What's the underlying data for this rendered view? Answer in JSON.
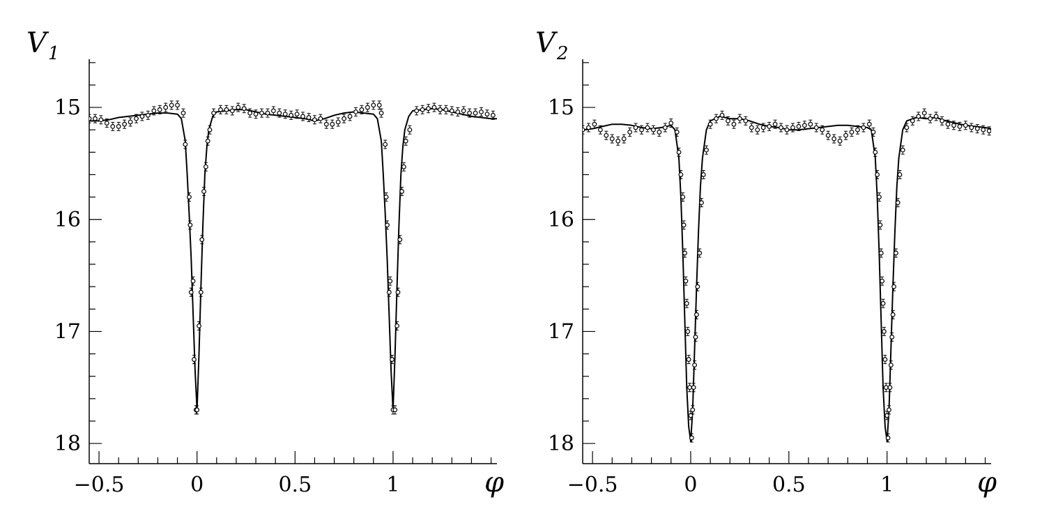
{
  "chart_data": [
    {
      "type": "line",
      "ylabel_symbol": "V",
      "ylabel_subscript": "1",
      "xlabel": "φ",
      "xlim": [
        -0.55,
        1.53
      ],
      "ylim": [
        18.18,
        14.57
      ],
      "y_inverted": true,
      "grid": false,
      "x_ticks": [
        -0.5,
        0,
        0.5,
        1
      ],
      "x_tick_labels": [
        "−0.5",
        "0",
        "0.5",
        "1"
      ],
      "y_ticks": [
        15,
        16,
        17,
        18
      ],
      "y_tick_labels": [
        "15",
        "16",
        "17",
        "18"
      ],
      "x_minor_step": 0.1,
      "y_minor_step": 0.2,
      "series": [
        {
          "kind": "model-curve",
          "x": [
            -0.55,
            -0.5,
            -0.45,
            -0.4,
            -0.35,
            -0.3,
            -0.25,
            -0.2,
            -0.15,
            -0.1,
            -0.08,
            -0.06,
            -0.05,
            -0.04,
            -0.03,
            -0.02,
            -0.01,
            0,
            0.01,
            0.02,
            0.03,
            0.04,
            0.05,
            0.06,
            0.08,
            0.1,
            0.15,
            0.2,
            0.25,
            0.3,
            0.35,
            0.4,
            0.45,
            0.5,
            0.55,
            0.6,
            0.65,
            0.7,
            0.75,
            0.8,
            0.85,
            0.9,
            0.92,
            0.94,
            0.95,
            0.96,
            0.97,
            0.98,
            0.99,
            1,
            1.01,
            1.02,
            1.03,
            1.04,
            1.05,
            1.06,
            1.08,
            1.1,
            1.15,
            1.2,
            1.25,
            1.3,
            1.35,
            1.4,
            1.45,
            1.5,
            1.53
          ],
          "y": [
            15.12,
            15.12,
            15.11,
            15.09,
            15.08,
            15.07,
            15.06,
            15.05,
            15.05,
            15.06,
            15.1,
            15.3,
            15.6,
            15.95,
            16.35,
            16.85,
            17.35,
            17.7,
            17.2,
            16.6,
            16.05,
            15.6,
            15.35,
            15.2,
            15.08,
            15.04,
            15.03,
            15.02,
            15.02,
            15.04,
            15.06,
            15.07,
            15.08,
            15.09,
            15.1,
            15.12,
            15.1,
            15.07,
            15.05,
            15.04,
            15.05,
            15.06,
            15.1,
            15.3,
            15.6,
            15.95,
            16.35,
            16.85,
            17.35,
            17.7,
            17.2,
            16.6,
            16.05,
            15.6,
            15.35,
            15.2,
            15.08,
            15.03,
            15.02,
            15.01,
            15.02,
            15.04,
            15.06,
            15.08,
            15.09,
            15.1,
            15.1
          ]
        },
        {
          "kind": "observations",
          "x": [
            -0.55,
            -0.52,
            -0.49,
            -0.46,
            -0.43,
            -0.4,
            -0.37,
            -0.34,
            -0.31,
            -0.28,
            -0.25,
            -0.22,
            -0.19,
            -0.16,
            -0.13,
            -0.1,
            -0.07,
            -0.06,
            -0.04,
            -0.035,
            -0.03,
            -0.02,
            -0.015,
            -0.005,
            0,
            0.01,
            0.02,
            0.025,
            0.035,
            0.045,
            0.055,
            0.065,
            0.085,
            0.12,
            0.15,
            0.18,
            0.21,
            0.24,
            0.27,
            0.3,
            0.33,
            0.36,
            0.39,
            0.42,
            0.45,
            0.48,
            0.51,
            0.54,
            0.57,
            0.6,
            0.63,
            0.66,
            0.69,
            0.72,
            0.75,
            0.78,
            0.81,
            0.84,
            0.87,
            0.9,
            0.93,
            0.94,
            0.96,
            0.965,
            0.97,
            0.98,
            0.985,
            0.995,
            1,
            1.01,
            1.02,
            1.025,
            1.035,
            1.045,
            1.055,
            1.065,
            1.085,
            1.12,
            1.15,
            1.18,
            1.21,
            1.24,
            1.27,
            1.3,
            1.33,
            1.36,
            1.39,
            1.42,
            1.45,
            1.48,
            1.51
          ],
          "y": [
            15.1,
            15.1,
            15.11,
            15.14,
            15.17,
            15.17,
            15.15,
            15.13,
            15.1,
            15.08,
            15.07,
            15.03,
            15.02,
            15.0,
            14.98,
            14.98,
            15.05,
            15.33,
            15.8,
            16.05,
            16.65,
            16.55,
            17.25,
            17.7,
            17.7,
            16.95,
            16.65,
            16.18,
            15.75,
            15.53,
            15.3,
            15.2,
            15.05,
            15.02,
            15.02,
            15.03,
            15.0,
            15.01,
            15.05,
            15.06,
            15.05,
            15.05,
            15.03,
            15.05,
            15.06,
            15.07,
            15.06,
            15.08,
            15.09,
            15.11,
            15.1,
            15.15,
            15.15,
            15.13,
            15.1,
            15.08,
            15.04,
            15.02,
            15.0,
            14.98,
            14.98,
            15.05,
            15.33,
            15.8,
            16.05,
            16.65,
            16.55,
            17.25,
            17.7,
            17.7,
            16.95,
            16.65,
            16.18,
            15.75,
            15.53,
            15.3,
            15.2,
            15.03,
            15.02,
            15.01,
            15.0,
            15.02,
            15.02,
            15.03,
            15.04,
            15.03,
            15.05,
            15.05,
            15.04,
            15.06,
            15.07
          ]
        }
      ]
    },
    {
      "type": "line",
      "ylabel_symbol": "V",
      "ylabel_subscript": "2",
      "xlabel": "φ",
      "xlim": [
        -0.55,
        1.53
      ],
      "ylim": [
        18.18,
        14.57
      ],
      "y_inverted": true,
      "grid": false,
      "x_ticks": [
        -0.5,
        0,
        0.5,
        1
      ],
      "x_tick_labels": [
        "−0.5",
        "0",
        "0.5",
        "1"
      ],
      "y_ticks": [
        15,
        16,
        17,
        18
      ],
      "y_tick_labels": [
        "15",
        "16",
        "17",
        "18"
      ],
      "x_minor_step": 0.1,
      "y_minor_step": 0.2,
      "series": [
        {
          "kind": "model-curve",
          "x": [
            -0.55,
            -0.5,
            -0.45,
            -0.4,
            -0.35,
            -0.3,
            -0.25,
            -0.2,
            -0.15,
            -0.1,
            -0.08,
            -0.06,
            -0.05,
            -0.04,
            -0.03,
            -0.02,
            -0.01,
            0,
            0.01,
            0.02,
            0.03,
            0.04,
            0.05,
            0.06,
            0.08,
            0.1,
            0.15,
            0.2,
            0.25,
            0.3,
            0.35,
            0.4,
            0.45,
            0.5,
            0.55,
            0.6,
            0.65,
            0.7,
            0.75,
            0.8,
            0.85,
            0.9,
            0.92,
            0.94,
            0.95,
            0.96,
            0.97,
            0.98,
            0.99,
            1,
            1.01,
            1.02,
            1.03,
            1.04,
            1.05,
            1.06,
            1.08,
            1.1,
            1.15,
            1.2,
            1.25,
            1.3,
            1.35,
            1.4,
            1.45,
            1.5,
            1.53
          ],
          "y": [
            15.2,
            15.19,
            15.17,
            15.15,
            15.15,
            15.16,
            15.18,
            15.19,
            15.18,
            15.16,
            15.2,
            15.45,
            15.8,
            16.3,
            16.9,
            17.5,
            17.85,
            17.98,
            17.7,
            17.15,
            16.6,
            16.1,
            15.7,
            15.45,
            15.2,
            15.12,
            15.08,
            15.1,
            15.1,
            15.12,
            15.15,
            15.17,
            15.18,
            15.2,
            15.2,
            15.19,
            15.18,
            15.17,
            15.16,
            15.16,
            15.17,
            15.18,
            15.2,
            15.45,
            15.8,
            16.3,
            16.9,
            17.5,
            17.85,
            17.98,
            17.7,
            17.15,
            16.6,
            16.1,
            15.7,
            15.45,
            15.2,
            15.12,
            15.09,
            15.1,
            15.09,
            15.12,
            15.14,
            15.16,
            15.17,
            15.18,
            15.19
          ]
        },
        {
          "kind": "observations",
          "x": [
            -0.55,
            -0.52,
            -0.49,
            -0.46,
            -0.43,
            -0.4,
            -0.37,
            -0.34,
            -0.31,
            -0.28,
            -0.25,
            -0.22,
            -0.19,
            -0.16,
            -0.13,
            -0.1,
            -0.07,
            -0.06,
            -0.05,
            -0.04,
            -0.035,
            -0.03,
            -0.025,
            -0.02,
            -0.015,
            -0.01,
            -0.005,
            0,
            0.005,
            0.01,
            0.015,
            0.02,
            0.025,
            0.03,
            0.035,
            0.045,
            0.055,
            0.065,
            0.08,
            0.1,
            0.13,
            0.16,
            0.19,
            0.22,
            0.25,
            0.28,
            0.31,
            0.34,
            0.37,
            0.4,
            0.43,
            0.46,
            0.49,
            0.52,
            0.55,
            0.58,
            0.61,
            0.64,
            0.67,
            0.7,
            0.73,
            0.76,
            0.79,
            0.82,
            0.85,
            0.88,
            0.91,
            0.93,
            0.94,
            0.95,
            0.96,
            0.965,
            0.97,
            0.975,
            0.98,
            0.985,
            0.99,
            0.995,
            1,
            1.005,
            1.01,
            1.015,
            1.02,
            1.025,
            1.03,
            1.035,
            1.045,
            1.055,
            1.065,
            1.08,
            1.1,
            1.13,
            1.16,
            1.19,
            1.22,
            1.25,
            1.28,
            1.31,
            1.34,
            1.37,
            1.4,
            1.43,
            1.46,
            1.49,
            1.52
          ],
          "y": [
            15.2,
            15.18,
            15.15,
            15.2,
            15.25,
            15.28,
            15.3,
            15.28,
            15.22,
            15.18,
            15.2,
            15.18,
            15.2,
            15.22,
            15.18,
            15.14,
            15.22,
            15.4,
            15.6,
            15.8,
            16.05,
            16.3,
            16.55,
            16.75,
            17.0,
            17.25,
            17.5,
            17.75,
            17.95,
            17.7,
            17.5,
            17.3,
            17.05,
            16.85,
            16.6,
            16.3,
            15.85,
            15.6,
            15.38,
            15.15,
            15.1,
            15.07,
            15.12,
            15.15,
            15.1,
            15.12,
            15.18,
            15.2,
            15.18,
            15.17,
            15.15,
            15.18,
            15.2,
            15.18,
            15.17,
            15.16,
            15.15,
            15.18,
            15.2,
            15.25,
            15.28,
            15.3,
            15.25,
            15.22,
            15.2,
            15.18,
            15.15,
            15.22,
            15.4,
            15.6,
            15.8,
            16.05,
            16.3,
            16.55,
            16.75,
            17.0,
            17.25,
            17.5,
            17.75,
            17.95,
            17.7,
            17.5,
            17.3,
            17.05,
            16.85,
            16.6,
            16.3,
            15.85,
            15.6,
            15.38,
            15.18,
            15.12,
            15.08,
            15.05,
            15.1,
            15.08,
            15.12,
            15.15,
            15.16,
            15.17,
            15.16,
            15.18,
            15.19,
            15.2,
            15.21
          ]
        }
      ]
    }
  ]
}
